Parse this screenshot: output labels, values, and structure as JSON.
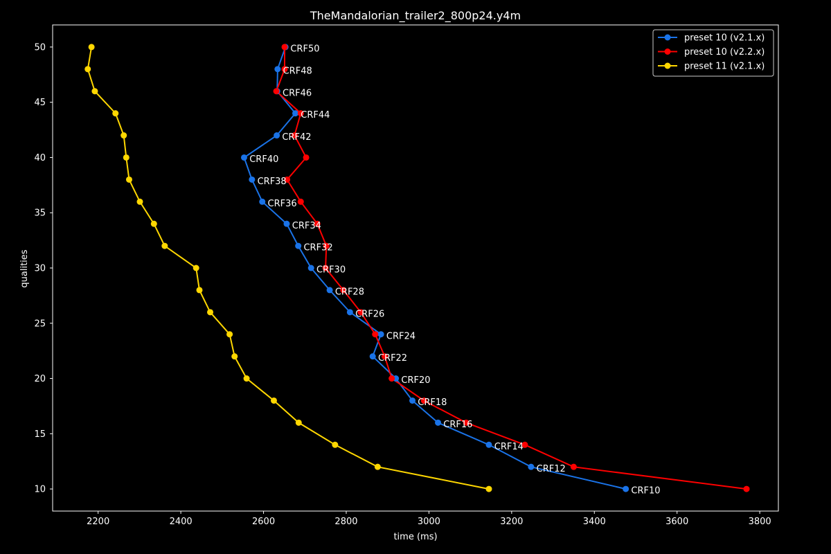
{
  "chart_data": {
    "type": "line",
    "title": "TheMandalorian_trailer2_800p24.y4m",
    "xlabel": "time (ms)",
    "ylabel": "qualities",
    "xlim": [
      2090,
      3845
    ],
    "ylim": [
      8,
      52
    ],
    "xticks": [
      2200,
      2400,
      2600,
      2800,
      3000,
      3200,
      3400,
      3600,
      3800
    ],
    "yticks": [
      10,
      15,
      20,
      25,
      30,
      35,
      40,
      45,
      50
    ],
    "legend_position": "top-right",
    "series": [
      {
        "name": "preset 10 (v2.1.x)",
        "color": "#1a73e8",
        "x": [
          2653,
          2634,
          2633,
          2677,
          2632,
          2553,
          2572,
          2597,
          2656,
          2684,
          2715,
          2760,
          2809,
          2884,
          2864,
          2920,
          2960,
          3022,
          3145,
          3247,
          3476
        ],
        "y": [
          50,
          48,
          46,
          44,
          42,
          40,
          38,
          36,
          34,
          32,
          30,
          28,
          26,
          24,
          22,
          20,
          18,
          16,
          14,
          12,
          10
        ]
      },
      {
        "name": "preset 10 (v2.2.x)",
        "color": "#ff0000",
        "x": [
          2651,
          2651,
          2631,
          2690,
          2675,
          2703,
          2657,
          2690,
          2730,
          2752,
          2750,
          2793,
          2835,
          2870,
          2893,
          2910,
          2988,
          3090,
          3232,
          3350,
          3768
        ],
        "y": [
          50,
          48,
          46,
          44,
          42,
          40,
          38,
          36,
          34,
          32,
          30,
          28,
          26,
          24,
          22,
          20,
          18,
          16,
          14,
          12,
          10
        ]
      },
      {
        "name": "preset 11 (v2.1.x)",
        "color": "#ffd700",
        "x": [
          2184,
          2175,
          2192,
          2242,
          2262,
          2268,
          2275,
          2301,
          2335,
          2361,
          2437,
          2445,
          2471,
          2518,
          2530,
          2559,
          2625,
          2685,
          2773,
          2876,
          3145
        ],
        "y": [
          50,
          48,
          46,
          44,
          42,
          40,
          38,
          36,
          34,
          32,
          30,
          28,
          26,
          24,
          22,
          20,
          18,
          16,
          14,
          12,
          10
        ]
      }
    ],
    "annotations": [
      {
        "text": "CRF50",
        "x": 2665,
        "y": 49.9
      },
      {
        "text": "CRF48",
        "x": 2647,
        "y": 47.9
      },
      {
        "text": "CRF46",
        "x": 2646,
        "y": 45.9
      },
      {
        "text": "CRF44",
        "x": 2690,
        "y": 43.9
      },
      {
        "text": "CRF42",
        "x": 2645,
        "y": 41.9
      },
      {
        "text": "CRF40",
        "x": 2566,
        "y": 39.9
      },
      {
        "text": "CRF38",
        "x": 2585,
        "y": 37.9
      },
      {
        "text": "CRF36",
        "x": 2610,
        "y": 35.9
      },
      {
        "text": "CRF34",
        "x": 2669,
        "y": 33.9
      },
      {
        "text": "CRF32",
        "x": 2697,
        "y": 31.9
      },
      {
        "text": "CRF30",
        "x": 2728,
        "y": 29.9
      },
      {
        "text": "CRF28",
        "x": 2773,
        "y": 27.9
      },
      {
        "text": "CRF26",
        "x": 2822,
        "y": 25.9
      },
      {
        "text": "CRF24",
        "x": 2897,
        "y": 23.9
      },
      {
        "text": "CRF22",
        "x": 2877,
        "y": 21.9
      },
      {
        "text": "CRF20",
        "x": 2933,
        "y": 19.9
      },
      {
        "text": "CRF18",
        "x": 2973,
        "y": 17.9
      },
      {
        "text": "CRF16",
        "x": 3035,
        "y": 15.9
      },
      {
        "text": "CRF14",
        "x": 3158,
        "y": 13.9
      },
      {
        "text": "CRF12",
        "x": 3260,
        "y": 11.9
      },
      {
        "text": "CRF10",
        "x": 3489,
        "y": 9.9
      }
    ]
  }
}
